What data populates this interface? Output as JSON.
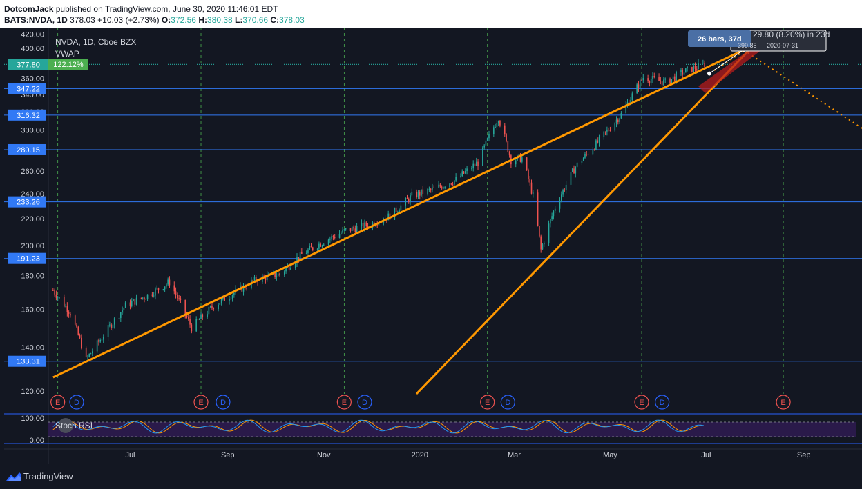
{
  "header": {
    "author": "DotcomJack",
    "published_text": "published on TradingView.com, June 30, 2020 11:46:01 EDT",
    "symbol": "BATS:NVDA, 1D",
    "last": "378.03",
    "change": "+10.03 (+2.73%)",
    "o_label": "O:",
    "o": "372.56",
    "h_label": "H:",
    "h": "380.38",
    "l_label": "L:",
    "l": "370.66",
    "c_label": "C:",
    "c": "378.03"
  },
  "legend": {
    "title": "NVDA, 1D, Cboe BZX",
    "indicator": "VWAP"
  },
  "stoch": {
    "label": "Stoch RSI",
    "ticks": [
      "100.00",
      "0.00"
    ]
  },
  "measure": {
    "bars": "26 bars, 37d",
    "change": "29.80 (8.20%) in 23d",
    "target_price": "399.85",
    "target_date": "2020-07-31"
  },
  "footer": {
    "brand": "TradingView"
  },
  "colors": {
    "background": "#131722",
    "trendline": "#ff9800",
    "up": "#26a69a",
    "down": "#ef5350",
    "level": "#3179f5",
    "last_price": "#4caf50",
    "rsi_fill": "#2a1a4a"
  },
  "chart_data": {
    "type": "candlestick",
    "title": "NVDA, 1D, Cboe BZX",
    "y_scale": "log",
    "ylim": [
      113,
      430
    ],
    "y_ticks": [
      "420.00",
      "400.00",
      "380.00",
      "360.00",
      "340.00",
      "320.00",
      "300.00",
      "280.00",
      "260.00",
      "240.00",
      "220.00",
      "200.00",
      "180.00",
      "160.00",
      "140.00",
      "120.00"
    ],
    "x_ticks": [
      "Jul",
      "Sep",
      "Nov",
      "2020",
      "Mar",
      "May",
      "Jul",
      "Sep"
    ],
    "x_tick_dates": [
      "2019-07-01",
      "2019-09-01",
      "2019-11-01",
      "2020-01-01",
      "2020-03-01",
      "2020-05-01",
      "2020-07-01",
      "2020-09-01"
    ],
    "x_range": [
      "2019-05-10",
      "2020-10-08"
    ],
    "price_labels": [
      {
        "text": "378.03",
        "price": 378.03,
        "color": "#26a69a",
        "badge": "122.12%"
      },
      {
        "text": "377.80",
        "price": 377.8,
        "color": "#26a69a"
      },
      {
        "text": "347.22",
        "price": 347.22,
        "color": "#3179f5"
      },
      {
        "text": "316.32",
        "price": 316.32,
        "color": "#3179f5"
      },
      {
        "text": "280.15",
        "price": 280.15,
        "color": "#3179f5"
      },
      {
        "text": "233.26",
        "price": 233.26,
        "color": "#3179f5"
      },
      {
        "text": "191.23",
        "price": 191.23,
        "color": "#3179f5"
      },
      {
        "text": "133.31",
        "price": 133.31,
        "color": "#3179f5"
      }
    ],
    "price_path": [
      [
        "2019-05-13",
        171
      ],
      [
        "2019-05-24",
        158
      ],
      [
        "2019-06-03",
        134
      ],
      [
        "2019-06-14",
        146
      ],
      [
        "2019-06-28",
        162
      ],
      [
        "2019-07-12",
        168
      ],
      [
        "2019-07-26",
        176
      ],
      [
        "2019-08-09",
        150
      ],
      [
        "2019-08-23",
        162
      ],
      [
        "2019-09-06",
        170
      ],
      [
        "2019-09-20",
        178
      ],
      [
        "2019-10-04",
        181
      ],
      [
        "2019-10-18",
        194
      ],
      [
        "2019-11-01",
        203
      ],
      [
        "2019-11-15",
        211
      ],
      [
        "2019-11-29",
        215
      ],
      [
        "2019-12-13",
        222
      ],
      [
        "2019-12-27",
        238
      ],
      [
        "2020-01-10",
        244
      ],
      [
        "2020-01-24",
        252
      ],
      [
        "2020-02-07",
        268
      ],
      [
        "2020-02-20",
        314
      ],
      [
        "2020-02-28",
        270
      ],
      [
        "2020-03-06",
        272
      ],
      [
        "2020-03-13",
        238
      ],
      [
        "2020-03-18",
        197
      ],
      [
        "2020-03-27",
        229
      ],
      [
        "2020-04-09",
        264
      ],
      [
        "2020-04-24",
        289
      ],
      [
        "2020-05-08",
        317
      ],
      [
        "2020-05-22",
        361
      ],
      [
        "2020-06-05",
        355
      ],
      [
        "2020-06-19",
        370
      ],
      [
        "2020-06-30",
        378
      ]
    ],
    "events": [
      {
        "date": "2019-05-16",
        "type": "E"
      },
      {
        "date": "2019-05-28",
        "type": "D"
      },
      {
        "date": "2019-08-15",
        "type": "E"
      },
      {
        "date": "2019-08-29",
        "type": "D"
      },
      {
        "date": "2019-11-14",
        "type": "E"
      },
      {
        "date": "2019-11-27",
        "type": "D"
      },
      {
        "date": "2020-02-13",
        "type": "E"
      },
      {
        "date": "2020-02-26",
        "type": "D"
      },
      {
        "date": "2020-05-21",
        "type": "E"
      },
      {
        "date": "2020-06-03",
        "type": "D"
      },
      {
        "date": "2020-08-19",
        "type": "E"
      }
    ],
    "trendlines": [
      {
        "from": [
          "2019-05-13",
          126
        ],
        "to": [
          "2020-07-31",
          404
        ]
      },
      {
        "from": [
          "2019-12-21",
          113
        ],
        "to": [
          "2020-08-07",
          420
        ]
      }
    ],
    "projection": {
      "from": [
        "2020-07-25",
        397
      ],
      "to": [
        "2020-10-08",
        302
      ]
    }
  }
}
